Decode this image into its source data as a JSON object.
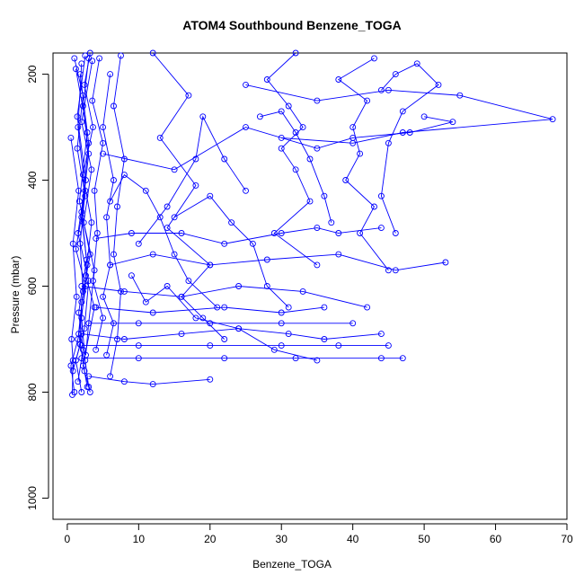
{
  "chart_data": {
    "type": "scatter",
    "title": "ATOM4 Southbound Benzene_TOGA",
    "xlabel": "Benzene_TOGA",
    "ylabel": "Pressure (mbar)",
    "xlim": [
      -2,
      70
    ],
    "ylim": [
      1040,
      160
    ],
    "y_inverted": true,
    "x_ticks": [
      0,
      10,
      20,
      30,
      40,
      50,
      60,
      70
    ],
    "y_ticks": [
      200,
      400,
      600,
      800,
      1000
    ],
    "series_color": "#0000ff",
    "grid": false,
    "series": [
      {
        "values": [
          [
            2.0,
            180
          ],
          [
            1.5,
            300
          ],
          [
            2.5,
            420
          ],
          [
            1.8,
            520
          ],
          [
            2.2,
            610
          ],
          [
            1.5,
            700
          ],
          [
            0.5,
            750
          ],
          [
            1.0,
            800
          ]
        ]
      },
      {
        "values": [
          [
            3.0,
            170
          ],
          [
            2.2,
            260
          ],
          [
            3.0,
            350
          ],
          [
            2.0,
            470
          ],
          [
            2.8,
            560
          ],
          [
            2.0,
            660
          ],
          [
            2.5,
            740
          ],
          [
            3.0,
            790
          ]
        ]
      },
      {
        "values": [
          [
            1.2,
            190
          ],
          [
            2.8,
            310
          ],
          [
            1.7,
            440
          ],
          [
            3.2,
            540
          ],
          [
            2.0,
            630
          ],
          [
            1.8,
            710
          ],
          [
            0.8,
            760
          ]
        ]
      },
      {
        "values": [
          [
            2.5,
            165
          ],
          [
            1.4,
            280
          ],
          [
            2.6,
            400
          ],
          [
            1.5,
            500
          ],
          [
            3.0,
            590
          ],
          [
            2.4,
            680
          ],
          [
            1.2,
            740
          ],
          [
            2.0,
            800
          ]
        ]
      },
      {
        "values": [
          [
            3.5,
            175
          ],
          [
            2.0,
            290
          ],
          [
            3.4,
            380
          ],
          [
            2.3,
            480
          ],
          [
            3.8,
            570
          ],
          [
            3.0,
            670
          ],
          [
            2.6,
            730
          ]
        ]
      },
      {
        "values": [
          [
            1.8,
            200
          ],
          [
            3.0,
            330
          ],
          [
            2.0,
            460
          ],
          [
            2.7,
            550
          ],
          [
            1.6,
            650
          ],
          [
            2.2,
            720
          ],
          [
            1.5,
            780
          ]
        ]
      },
      {
        "values": [
          [
            0.5,
            320
          ],
          [
            1.6,
            420
          ],
          [
            0.8,
            520
          ],
          [
            1.3,
            620
          ],
          [
            0.6,
            700
          ],
          [
            0.8,
            740
          ],
          [
            0.7,
            805
          ]
        ]
      },
      {
        "values": [
          [
            4.5,
            170
          ],
          [
            3.5,
            250
          ],
          [
            5.0,
            330
          ],
          [
            3.8,
            420
          ],
          [
            4.2,
            500
          ],
          [
            3.6,
            590
          ],
          [
            5.0,
            660
          ],
          [
            4.0,
            720
          ]
        ]
      },
      {
        "values": [
          [
            6.0,
            200
          ],
          [
            5.0,
            300
          ],
          [
            6.5,
            400
          ],
          [
            5.5,
            470
          ],
          [
            6.0,
            560
          ],
          [
            5.0,
            620
          ],
          [
            6.5,
            670
          ],
          [
            5.5,
            730
          ]
        ]
      },
      {
        "values": [
          [
            7.5,
            165
          ],
          [
            6.5,
            260
          ],
          [
            8.0,
            360
          ],
          [
            7.0,
            450
          ],
          [
            6.5,
            540
          ],
          [
            7.5,
            610
          ],
          [
            7.0,
            700
          ],
          [
            6.0,
            770
          ]
        ]
      },
      {
        "values": [
          [
            1.0,
            170
          ],
          [
            2.2,
            240
          ],
          [
            1.4,
            340
          ],
          [
            2.5,
            430
          ],
          [
            1.2,
            530
          ],
          [
            2.6,
            600
          ],
          [
            1.6,
            690
          ],
          [
            2.4,
            760
          ],
          [
            2.8,
            790
          ]
        ]
      },
      {
        "values": [
          [
            3.2,
            160
          ],
          [
            2.4,
            220
          ],
          [
            3.6,
            300
          ],
          [
            2.2,
            390
          ],
          [
            3.4,
            480
          ],
          [
            2.6,
            580
          ],
          [
            3.8,
            640
          ],
          [
            2.2,
            750
          ],
          [
            3.2,
            800
          ]
        ]
      },
      {
        "values": [
          [
            32,
            160
          ],
          [
            28,
            210
          ],
          [
            31,
            260
          ],
          [
            33,
            300
          ],
          [
            30,
            340
          ],
          [
            32,
            380
          ],
          [
            34,
            440
          ],
          [
            29,
            500
          ],
          [
            35,
            560
          ]
        ]
      },
      {
        "values": [
          [
            43,
            170
          ],
          [
            38,
            210
          ],
          [
            42,
            250
          ],
          [
            40,
            300
          ],
          [
            41,
            350
          ],
          [
            39,
            400
          ],
          [
            43,
            450
          ],
          [
            41,
            500
          ],
          [
            45,
            570
          ]
        ]
      },
      {
        "values": [
          [
            12,
            160
          ],
          [
            17,
            240
          ],
          [
            13,
            320
          ],
          [
            18,
            410
          ],
          [
            14,
            490
          ],
          [
            20,
            560
          ],
          [
            16,
            620
          ],
          [
            19,
            660
          ],
          [
            22,
            700
          ]
        ]
      },
      {
        "values": [
          [
            5,
            350
          ],
          [
            15,
            380
          ],
          [
            25,
            300
          ],
          [
            35,
            340
          ],
          [
            40,
            320
          ],
          [
            48,
            310
          ],
          [
            54,
            290
          ],
          [
            50,
            280
          ]
        ]
      },
      {
        "values": [
          [
            25,
            220
          ],
          [
            35,
            250
          ],
          [
            45,
            230
          ],
          [
            55,
            240
          ],
          [
            68,
            285
          ],
          [
            47,
            310
          ],
          [
            40,
            330
          ],
          [
            30,
            320
          ]
        ]
      },
      {
        "values": [
          [
            4,
            510
          ],
          [
            9,
            500
          ],
          [
            16,
            500
          ],
          [
            22,
            520
          ],
          [
            30,
            500
          ],
          [
            35,
            490
          ],
          [
            38,
            500
          ],
          [
            44,
            490
          ]
        ]
      },
      {
        "values": [
          [
            6,
            560
          ],
          [
            12,
            540
          ],
          [
            20,
            560
          ],
          [
            28,
            550
          ],
          [
            38,
            540
          ],
          [
            46,
            570
          ],
          [
            53,
            555
          ]
        ]
      },
      {
        "values": [
          [
            2,
            600
          ],
          [
            8,
            610
          ],
          [
            16,
            620
          ],
          [
            24,
            600
          ],
          [
            33,
            610
          ],
          [
            42,
            640
          ]
        ]
      },
      {
        "values": [
          [
            3,
            670
          ],
          [
            10,
            670
          ],
          [
            20,
            670
          ],
          [
            30,
            670
          ],
          [
            40,
            670
          ]
        ]
      },
      {
        "values": [
          [
            2,
            712
          ],
          [
            10,
            712
          ],
          [
            20,
            712
          ],
          [
            30,
            712
          ],
          [
            38,
            712
          ],
          [
            45,
            712
          ]
        ]
      },
      {
        "values": [
          [
            2,
            736
          ],
          [
            10,
            736
          ],
          [
            22,
            736
          ],
          [
            32,
            736
          ],
          [
            44,
            736
          ],
          [
            47,
            736
          ]
        ]
      },
      {
        "values": [
          [
            2,
            690
          ],
          [
            8,
            700
          ],
          [
            16,
            690
          ],
          [
            24,
            680
          ],
          [
            31,
            690
          ],
          [
            36,
            700
          ],
          [
            44,
            690
          ]
        ]
      },
      {
        "values": [
          [
            4,
            640
          ],
          [
            12,
            650
          ],
          [
            22,
            640
          ],
          [
            30,
            650
          ],
          [
            36,
            640
          ]
        ]
      },
      {
        "values": [
          [
            3,
            770
          ],
          [
            8,
            780
          ],
          [
            12,
            785
          ],
          [
            20,
            776
          ]
        ]
      },
      {
        "values": [
          [
            10,
            520
          ],
          [
            14,
            450
          ],
          [
            18,
            360
          ],
          [
            19,
            280
          ],
          [
            22,
            360
          ],
          [
            25,
            420
          ]
        ]
      },
      {
        "values": [
          [
            27,
            280
          ],
          [
            30,
            270
          ],
          [
            32,
            310
          ],
          [
            34,
            360
          ],
          [
            36,
            430
          ],
          [
            37,
            480
          ]
        ]
      },
      {
        "values": [
          [
            15,
            470
          ],
          [
            20,
            430
          ],
          [
            23,
            480
          ],
          [
            26,
            520
          ],
          [
            28,
            600
          ],
          [
            31,
            640
          ]
        ]
      },
      {
        "values": [
          [
            44,
            230
          ],
          [
            46,
            200
          ],
          [
            49,
            180
          ],
          [
            52,
            220
          ],
          [
            47,
            270
          ],
          [
            45,
            330
          ],
          [
            44,
            430
          ],
          [
            46,
            500
          ]
        ]
      },
      {
        "values": [
          [
            9,
            580
          ],
          [
            11,
            630
          ],
          [
            14,
            600
          ],
          [
            18,
            660
          ],
          [
            24,
            680
          ],
          [
            29,
            720
          ],
          [
            35,
            740
          ]
        ]
      },
      {
        "values": [
          [
            6,
            440
          ],
          [
            8,
            390
          ],
          [
            11,
            420
          ],
          [
            13,
            470
          ],
          [
            15,
            540
          ],
          [
            17,
            590
          ],
          [
            21,
            640
          ]
        ]
      }
    ]
  }
}
